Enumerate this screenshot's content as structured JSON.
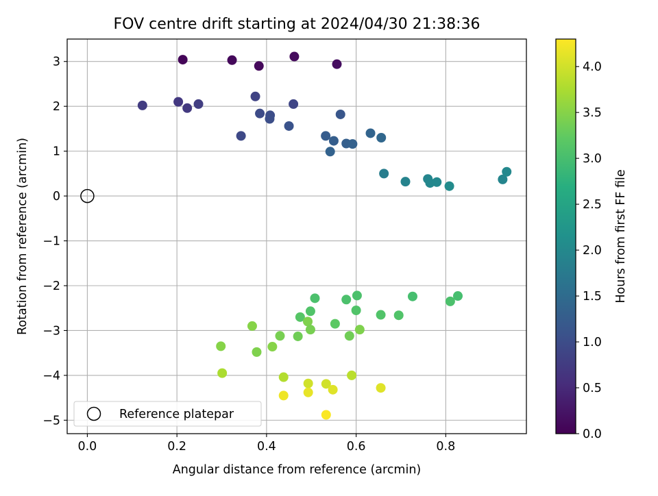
{
  "chart_data": {
    "type": "scatter",
    "title": "FOV centre drift starting at 2024/04/30 21:38:36",
    "xlabel": "Angular distance from reference (arcmin)",
    "ylabel": "Rotation from reference (arcmin)",
    "xlim": [
      -0.045,
      0.98
    ],
    "ylim": [
      -5.3,
      3.5
    ],
    "x_ticks": [
      0.0,
      0.2,
      0.4,
      0.6,
      0.8
    ],
    "x_tick_labels": [
      "0.0",
      "0.2",
      "0.4",
      "0.6",
      "0.8"
    ],
    "y_ticks": [
      3,
      2,
      1,
      0,
      -1,
      -2,
      -3,
      -4,
      -5
    ],
    "y_tick_labels": [
      "3",
      "2",
      "1",
      "0",
      "−1",
      "−2",
      "−3",
      "−4",
      "−5"
    ],
    "grid": true,
    "legend": {
      "position": "bottom-left",
      "entries": [
        "Reference platepar"
      ]
    },
    "reference_point": {
      "x": 0.0,
      "y": 0.0,
      "label": "Reference platepar"
    },
    "colorbar": {
      "label": "Hours from first FF file",
      "range": [
        0.0,
        4.3
      ],
      "ticks": [
        0.0,
        0.5,
        1.0,
        1.5,
        2.0,
        2.5,
        3.0,
        3.5,
        4.0
      ],
      "tick_labels": [
        "0.0",
        "0.5",
        "1.0",
        "1.5",
        "2.0",
        "2.5",
        "3.0",
        "3.5",
        "4.0"
      ],
      "colormap": "viridis"
    },
    "points": [
      {
        "x": 0.213,
        "y": 3.04,
        "c": 0.05
      },
      {
        "x": 0.323,
        "y": 3.03,
        "c": 0.08
      },
      {
        "x": 0.383,
        "y": 2.9,
        "c": 0.1
      },
      {
        "x": 0.462,
        "y": 3.11,
        "c": 0.12
      },
      {
        "x": 0.557,
        "y": 2.94,
        "c": 0.15
      },
      {
        "x": 0.123,
        "y": 2.02,
        "c": 0.75
      },
      {
        "x": 0.203,
        "y": 2.1,
        "c": 0.7
      },
      {
        "x": 0.223,
        "y": 1.96,
        "c": 0.72
      },
      {
        "x": 0.248,
        "y": 2.05,
        "c": 0.78
      },
      {
        "x": 0.375,
        "y": 2.22,
        "c": 0.85
      },
      {
        "x": 0.46,
        "y": 2.05,
        "c": 0.88
      },
      {
        "x": 0.343,
        "y": 1.34,
        "c": 0.95
      },
      {
        "x": 0.385,
        "y": 1.84,
        "c": 0.98
      },
      {
        "x": 0.408,
        "y": 1.8,
        "c": 1.0
      },
      {
        "x": 0.407,
        "y": 1.72,
        "c": 1.02
      },
      {
        "x": 0.45,
        "y": 1.56,
        "c": 1.1
      },
      {
        "x": 0.565,
        "y": 1.82,
        "c": 1.15
      },
      {
        "x": 0.532,
        "y": 1.34,
        "c": 1.25
      },
      {
        "x": 0.55,
        "y": 1.23,
        "c": 1.28
      },
      {
        "x": 0.542,
        "y": 0.99,
        "c": 1.35
      },
      {
        "x": 0.578,
        "y": 1.17,
        "c": 1.3
      },
      {
        "x": 0.592,
        "y": 1.16,
        "c": 1.32
      },
      {
        "x": 0.632,
        "y": 1.4,
        "c": 1.38
      },
      {
        "x": 0.656,
        "y": 1.3,
        "c": 1.42
      },
      {
        "x": 0.662,
        "y": 0.5,
        "c": 1.8
      },
      {
        "x": 0.71,
        "y": 0.32,
        "c": 1.9
      },
      {
        "x": 0.76,
        "y": 0.38,
        "c": 1.95
      },
      {
        "x": 0.765,
        "y": 0.29,
        "c": 1.98
      },
      {
        "x": 0.78,
        "y": 0.31,
        "c": 2.0
      },
      {
        "x": 0.808,
        "y": 0.22,
        "c": 2.05
      },
      {
        "x": 0.927,
        "y": 0.37,
        "c": 1.95
      },
      {
        "x": 0.936,
        "y": 0.54,
        "c": 2.0
      },
      {
        "x": 0.508,
        "y": -2.28,
        "c": 3.05
      },
      {
        "x": 0.578,
        "y": -2.31,
        "c": 3.05
      },
      {
        "x": 0.602,
        "y": -2.22,
        "c": 3.05
      },
      {
        "x": 0.726,
        "y": -2.24,
        "c": 3.0
      },
      {
        "x": 0.81,
        "y": -2.35,
        "c": 3.05
      },
      {
        "x": 0.827,
        "y": -2.23,
        "c": 3.0
      },
      {
        "x": 0.498,
        "y": -2.57,
        "c": 3.1
      },
      {
        "x": 0.6,
        "y": -2.55,
        "c": 3.1
      },
      {
        "x": 0.475,
        "y": -2.7,
        "c": 3.15
      },
      {
        "x": 0.655,
        "y": -2.65,
        "c": 3.1
      },
      {
        "x": 0.695,
        "y": -2.66,
        "c": 3.1
      },
      {
        "x": 0.553,
        "y": -2.85,
        "c": 3.2
      },
      {
        "x": 0.492,
        "y": -2.8,
        "c": 3.45
      },
      {
        "x": 0.608,
        "y": -2.98,
        "c": 3.45
      },
      {
        "x": 0.498,
        "y": -2.98,
        "c": 3.4
      },
      {
        "x": 0.368,
        "y": -2.9,
        "c": 3.5
      },
      {
        "x": 0.43,
        "y": -3.12,
        "c": 3.4
      },
      {
        "x": 0.47,
        "y": -3.13,
        "c": 3.35
      },
      {
        "x": 0.585,
        "y": -3.12,
        "c": 3.35
      },
      {
        "x": 0.298,
        "y": -3.35,
        "c": 3.5
      },
      {
        "x": 0.378,
        "y": -3.48,
        "c": 3.45
      },
      {
        "x": 0.413,
        "y": -3.36,
        "c": 3.5
      },
      {
        "x": 0.301,
        "y": -3.95,
        "c": 3.75
      },
      {
        "x": 0.438,
        "y": -4.04,
        "c": 3.8
      },
      {
        "x": 0.59,
        "y": -4.0,
        "c": 3.85
      },
      {
        "x": 0.493,
        "y": -4.18,
        "c": 4.0
      },
      {
        "x": 0.533,
        "y": -4.19,
        "c": 4.0
      },
      {
        "x": 0.655,
        "y": -4.28,
        "c": 4.1
      },
      {
        "x": 0.548,
        "y": -4.32,
        "c": 4.1
      },
      {
        "x": 0.438,
        "y": -4.45,
        "c": 4.2
      },
      {
        "x": 0.493,
        "y": -4.38,
        "c": 4.15
      },
      {
        "x": 0.533,
        "y": -4.88,
        "c": 4.28
      }
    ]
  }
}
